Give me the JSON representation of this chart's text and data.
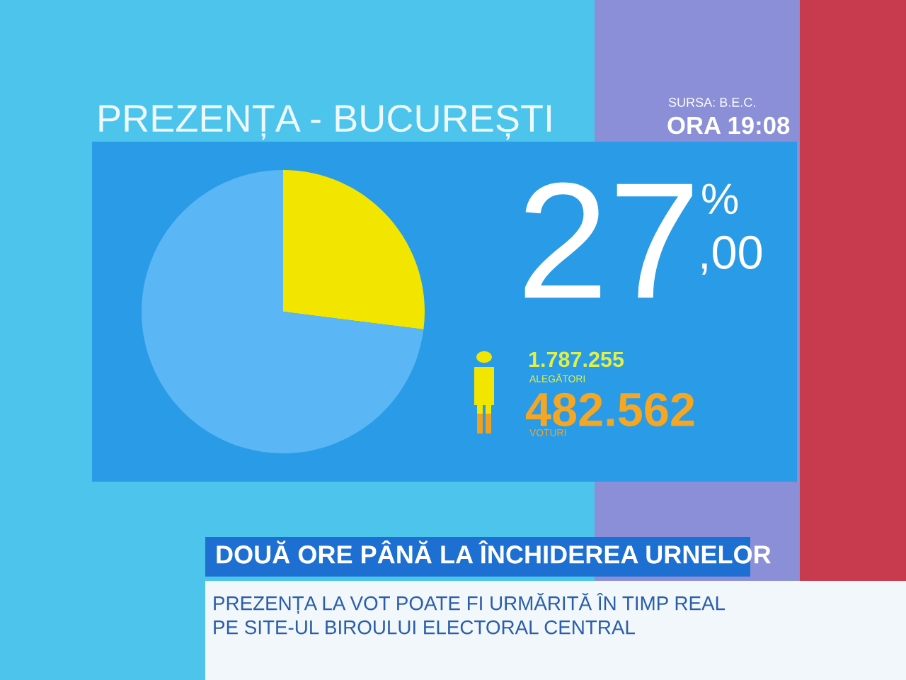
{
  "chart_data": {
    "type": "pie",
    "title": "PREZENȚA - BUCUREȘTI",
    "categories": [
      null,
      null
    ],
    "values": [
      27,
      73
    ],
    "colors": [
      "#f2e600",
      "#5ab6f4"
    ],
    "value_labels": [
      "27",
      null
    ],
    "annotations": [
      "%",
      ",00",
      "1.787.255",
      "ALEGĂTORI",
      "482.562",
      "VOTURI",
      "SURSA: B.E.C.",
      "ORA 19:08",
      "DOUĂ ORE PÂNĂ LA ÎNCHIDEREA URNELOR",
      "PREZENȚA LA VOT POATE FI URMĂRITĂ ÎN TIMP REAL",
      "PE SITE-UL BIROULUI ELECTORAL CENTRAL"
    ]
  }
}
